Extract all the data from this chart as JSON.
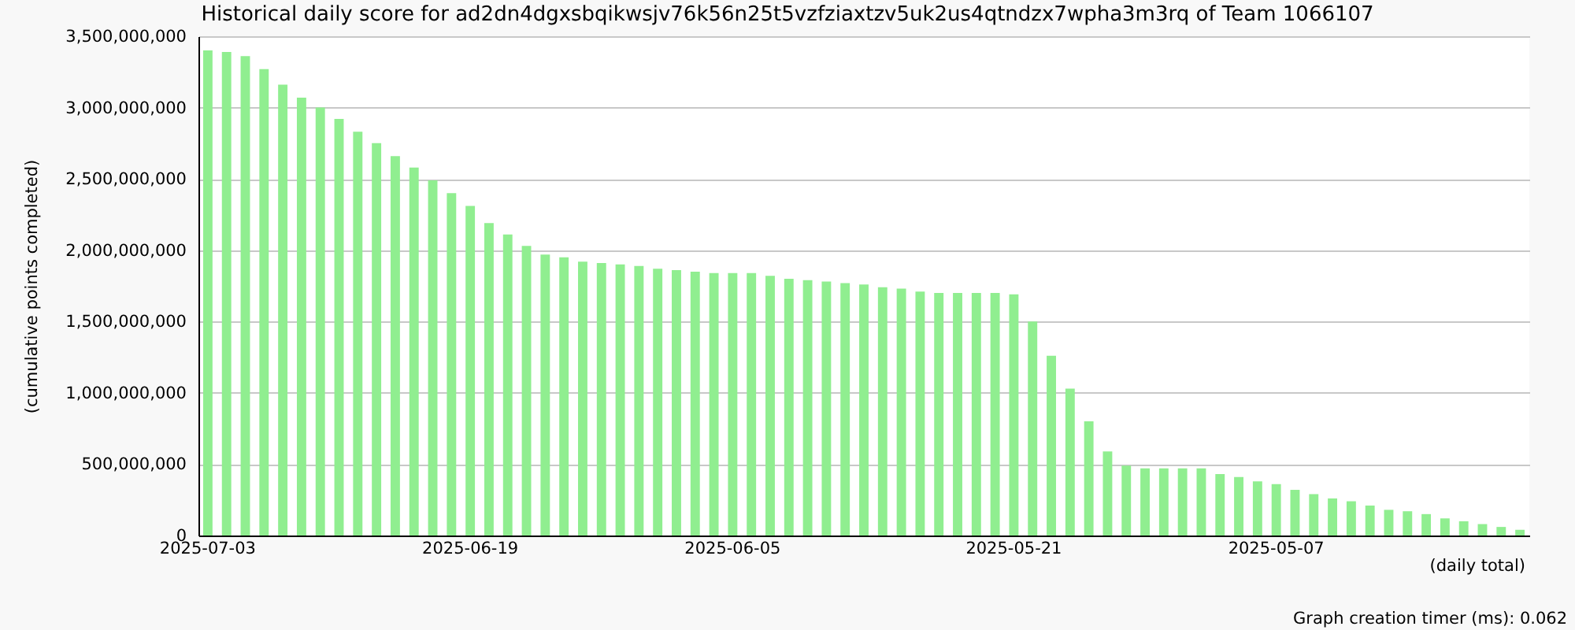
{
  "chart_data": {
    "type": "bar",
    "title": "Historical daily score for ad2dn4dgxsbqikwsjv76k56n25t5vzfziaxtzv5uk2us4qtndzx7wpha3m3rq of Team 1066107",
    "xlabel": "(daily total)",
    "ylabel": "(cumulative points completed)",
    "annotations": [
      "Graph creation timer (ms): 0.062"
    ],
    "categories": [
      "2025-07-03",
      null,
      null,
      null,
      null,
      null,
      null,
      null,
      null,
      null,
      null,
      null,
      null,
      null,
      "2025-06-19",
      null,
      null,
      null,
      null,
      null,
      null,
      null,
      null,
      null,
      null,
      null,
      null,
      null,
      "2025-06-05",
      null,
      null,
      null,
      null,
      null,
      null,
      null,
      null,
      null,
      null,
      null,
      null,
      null,
      null,
      "2025-05-21",
      null,
      null,
      null,
      null,
      null,
      null,
      null,
      null,
      null,
      null,
      null,
      null,
      null,
      "2025-05-07",
      null,
      null,
      null,
      null,
      null,
      null,
      null,
      null,
      null,
      null,
      null,
      null,
      null
    ],
    "values": [
      3400000000,
      3390000000,
      3360000000,
      3270000000,
      3160000000,
      3070000000,
      3000000000,
      2920000000,
      2830000000,
      2750000000,
      2660000000,
      2580000000,
      2490000000,
      2400000000,
      2310000000,
      2190000000,
      2110000000,
      2030000000,
      1970000000,
      1950000000,
      1920000000,
      1910000000,
      1900000000,
      1890000000,
      1870000000,
      1860000000,
      1850000000,
      1840000000,
      1840000000,
      1840000000,
      1820000000,
      1800000000,
      1790000000,
      1780000000,
      1770000000,
      1760000000,
      1740000000,
      1730000000,
      1710000000,
      1700000000,
      1700000000,
      1700000000,
      1700000000,
      1690000000,
      1500000000,
      1260000000,
      1030000000,
      800000000,
      590000000,
      490000000,
      470000000,
      470000000,
      470000000,
      470000000,
      430000000,
      410000000,
      380000000,
      360000000,
      320000000,
      290000000,
      260000000,
      240000000,
      210000000,
      180000000,
      170000000,
      150000000,
      120000000,
      100000000,
      80000000,
      60000000,
      40000000
    ],
    "color": "#90ee90",
    "ylim": [
      0,
      3500000000
    ],
    "yticks": [
      0,
      {
        "value": 500000000,
        "label": "500,000,000"
      },
      {
        "value": 1000000000,
        "label": "1,000,000,000"
      },
      {
        "value": 1500000000,
        "label": "1,500,000,000"
      },
      {
        "value": 2000000000,
        "label": "2,000,000,000"
      },
      {
        "value": 2500000000,
        "label": "2,500,000,000"
      },
      {
        "value": 3000000000,
        "label": "3,000,000,000"
      },
      {
        "value": 3500000000,
        "label": "3,500,000,000"
      }
    ],
    "grid": "y"
  }
}
